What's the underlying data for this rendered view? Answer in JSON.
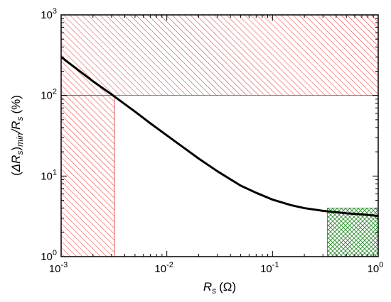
{
  "chart_data": {
    "type": "line",
    "title": "",
    "xlabel": {
      "main": "R",
      "sub": "s",
      "unit": "(Ω)"
    },
    "ylabel": {
      "open": "(",
      "delta": "ΔR",
      "sub_s": "s",
      "close": ")",
      "sub_min": "min",
      "slash": "/R",
      "sub_s2": "s",
      "unit": "(%)"
    },
    "x_scale": "log",
    "y_scale": "log",
    "xlim": [
      0.001,
      1
    ],
    "ylim": [
      1,
      1000
    ],
    "x_ticks": [
      {
        "base": "10",
        "exp": "-3",
        "value": 0.001
      },
      {
        "base": "10",
        "exp": "-2",
        "value": 0.01
      },
      {
        "base": "10",
        "exp": "-1",
        "value": 0.1
      },
      {
        "base": "10",
        "exp": "0",
        "value": 1
      }
    ],
    "y_ticks": [
      {
        "base": "10",
        "exp": "0",
        "value": 1
      },
      {
        "base": "10",
        "exp": "1",
        "value": 10
      },
      {
        "base": "10",
        "exp": "2",
        "value": 100
      },
      {
        "base": "10",
        "exp": "3",
        "value": 1000
      }
    ],
    "series": [
      {
        "color": "#000000",
        "x": [
          0.001,
          0.0015,
          0.002,
          0.003,
          0.005,
          0.007,
          0.01,
          0.015,
          0.02,
          0.03,
          0.05,
          0.07,
          0.1,
          0.15,
          0.2,
          0.3,
          0.5,
          0.7,
          1.0
        ],
        "y": [
          300,
          200,
          150,
          103,
          63,
          45,
          32,
          21.7,
          16.5,
          11.5,
          7.6,
          6.2,
          5.1,
          4.35,
          4.0,
          3.7,
          3.45,
          3.35,
          3.2
        ]
      }
    ],
    "regions": [
      {
        "kind": "hatch-diagonal",
        "color": "#e03030",
        "x": [
          0.001,
          1
        ],
        "y": [
          100,
          1000
        ]
      },
      {
        "kind": "hatch-diagonal",
        "color": "#e03030",
        "x": [
          0.001,
          0.0032
        ],
        "y": [
          1,
          100
        ]
      },
      {
        "kind": "hatch-cross",
        "color": "#2e8b2e",
        "x": [
          0.33,
          1
        ],
        "y": [
          1,
          4
        ]
      }
    ],
    "grid": false,
    "legend": "none"
  }
}
